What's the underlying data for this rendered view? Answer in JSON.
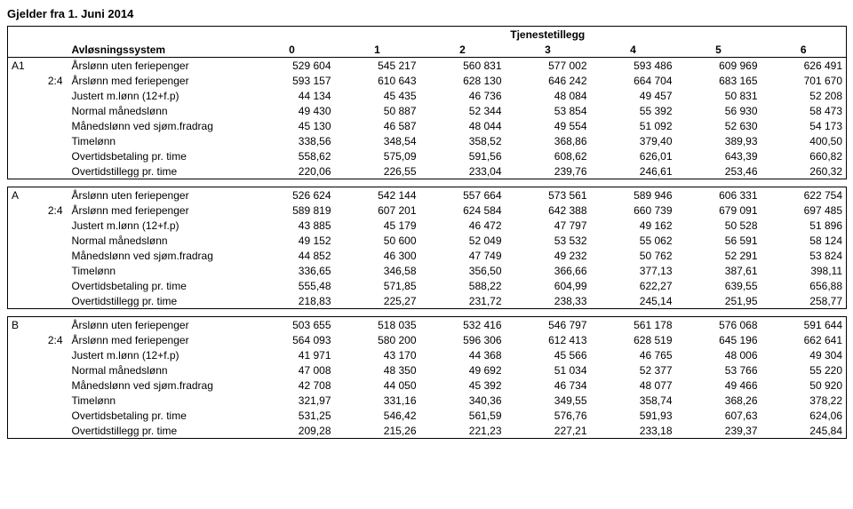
{
  "title": "Gjelder fra 1. Juni 2014",
  "header": {
    "super": "Tjenestetillegg",
    "system": "Avløsningssystem",
    "cols": [
      "0",
      "1",
      "2",
      "3",
      "4",
      "5",
      "6"
    ]
  },
  "row_labels": [
    "Årslønn uten feriepenger",
    "Årslønn med feriepenger",
    "Justert m.lønn (12+f.p)",
    "Normal månedslønn",
    "Månedslønn ved sjøm.fradrag",
    "Timelønn",
    "Overtidsbetaling pr. time",
    "Overtidstillegg pr. time"
  ],
  "blocks": [
    {
      "code": "A1",
      "ratio": "2:4",
      "rows": [
        [
          "529 604",
          "545 217",
          "560 831",
          "577 002",
          "593 486",
          "609 969",
          "626 491"
        ],
        [
          "593 157",
          "610 643",
          "628 130",
          "646 242",
          "664 704",
          "683 165",
          "701 670"
        ],
        [
          "44 134",
          "45 435",
          "46 736",
          "48 084",
          "49 457",
          "50 831",
          "52 208"
        ],
        [
          "49 430",
          "50 887",
          "52 344",
          "53 854",
          "55 392",
          "56 930",
          "58 473"
        ],
        [
          "45 130",
          "46 587",
          "48 044",
          "49 554",
          "51 092",
          "52 630",
          "54 173"
        ],
        [
          "338,56",
          "348,54",
          "358,52",
          "368,86",
          "379,40",
          "389,93",
          "400,50"
        ],
        [
          "558,62",
          "575,09",
          "591,56",
          "608,62",
          "626,01",
          "643,39",
          "660,82"
        ],
        [
          "220,06",
          "226,55",
          "233,04",
          "239,76",
          "246,61",
          "253,46",
          "260,32"
        ]
      ]
    },
    {
      "code": "A",
      "ratio": "2:4",
      "rows": [
        [
          "526 624",
          "542 144",
          "557 664",
          "573 561",
          "589 946",
          "606 331",
          "622 754"
        ],
        [
          "589 819",
          "607 201",
          "624 584",
          "642 388",
          "660 739",
          "679 091",
          "697 485"
        ],
        [
          "43 885",
          "45 179",
          "46 472",
          "47 797",
          "49 162",
          "50 528",
          "51 896"
        ],
        [
          "49 152",
          "50 600",
          "52 049",
          "53 532",
          "55 062",
          "56 591",
          "58 124"
        ],
        [
          "44 852",
          "46 300",
          "47 749",
          "49 232",
          "50 762",
          "52 291",
          "53 824"
        ],
        [
          "336,65",
          "346,58",
          "356,50",
          "366,66",
          "377,13",
          "387,61",
          "398,11"
        ],
        [
          "555,48",
          "571,85",
          "588,22",
          "604,99",
          "622,27",
          "639,55",
          "656,88"
        ],
        [
          "218,83",
          "225,27",
          "231,72",
          "238,33",
          "245,14",
          "251,95",
          "258,77"
        ]
      ]
    },
    {
      "code": "B",
      "ratio": "2:4",
      "rows": [
        [
          "503 655",
          "518 035",
          "532 416",
          "546 797",
          "561 178",
          "576 068",
          "591 644"
        ],
        [
          "564 093",
          "580 200",
          "596 306",
          "612 413",
          "628 519",
          "645 196",
          "662 641"
        ],
        [
          "41 971",
          "43 170",
          "44 368",
          "45 566",
          "46 765",
          "48 006",
          "49 304"
        ],
        [
          "47 008",
          "48 350",
          "49 692",
          "51 034",
          "52 377",
          "53 766",
          "55 220"
        ],
        [
          "42 708",
          "44 050",
          "45 392",
          "46 734",
          "48 077",
          "49 466",
          "50 920"
        ],
        [
          "321,97",
          "331,16",
          "340,36",
          "349,55",
          "358,74",
          "368,26",
          "378,22"
        ],
        [
          "531,25",
          "546,42",
          "561,59",
          "576,76",
          "591,93",
          "607,63",
          "624,06"
        ],
        [
          "209,28",
          "215,26",
          "221,23",
          "227,21",
          "233,18",
          "239,37",
          "245,84"
        ]
      ]
    }
  ]
}
